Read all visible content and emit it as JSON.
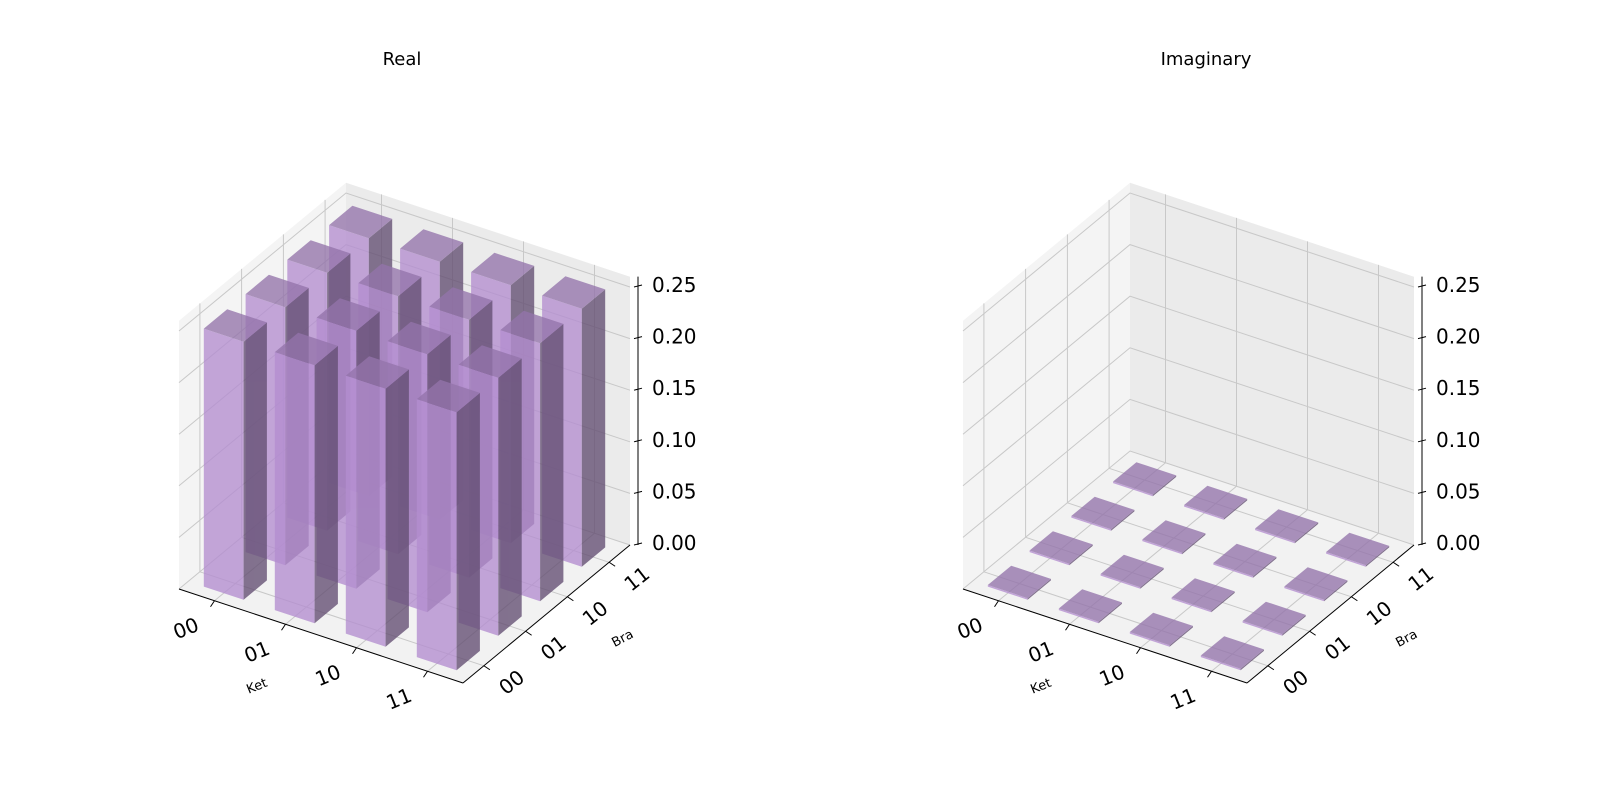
{
  "chart_data": [
    {
      "type": "bar3d",
      "title": "Real",
      "xlabel": "Ket",
      "ylabel": "Bra",
      "x_categories": [
        "00",
        "01",
        "10",
        "11"
      ],
      "y_categories": [
        "00",
        "01",
        "10",
        "11"
      ],
      "zlim": [
        0,
        0.25
      ],
      "zticks": [
        "0.00",
        "0.05",
        "0.10",
        "0.15",
        "0.20",
        "0.25"
      ],
      "values": [
        [
          0.25,
          0.25,
          0.25,
          0.25
        ],
        [
          0.25,
          0.25,
          0.25,
          0.25
        ],
        [
          0.25,
          0.25,
          0.25,
          0.25
        ],
        [
          0.25,
          0.25,
          0.25,
          0.25
        ]
      ],
      "bar_color": "#b48ed0",
      "grid": true
    },
    {
      "type": "bar3d",
      "title": "Imaginary",
      "xlabel": "Ket",
      "ylabel": "Bra",
      "x_categories": [
        "00",
        "01",
        "10",
        "11"
      ],
      "y_categories": [
        "00",
        "01",
        "10",
        "11"
      ],
      "zlim": [
        0,
        0.25
      ],
      "zticks": [
        "0.00",
        "0.05",
        "0.10",
        "0.15",
        "0.20",
        "0.25"
      ],
      "values": [
        [
          0,
          0,
          0,
          0
        ],
        [
          0,
          0,
          0,
          0
        ],
        [
          0,
          0,
          0,
          0
        ],
        [
          0,
          0,
          0,
          0
        ]
      ],
      "bar_color": "#b48ed0",
      "grid": true
    }
  ]
}
